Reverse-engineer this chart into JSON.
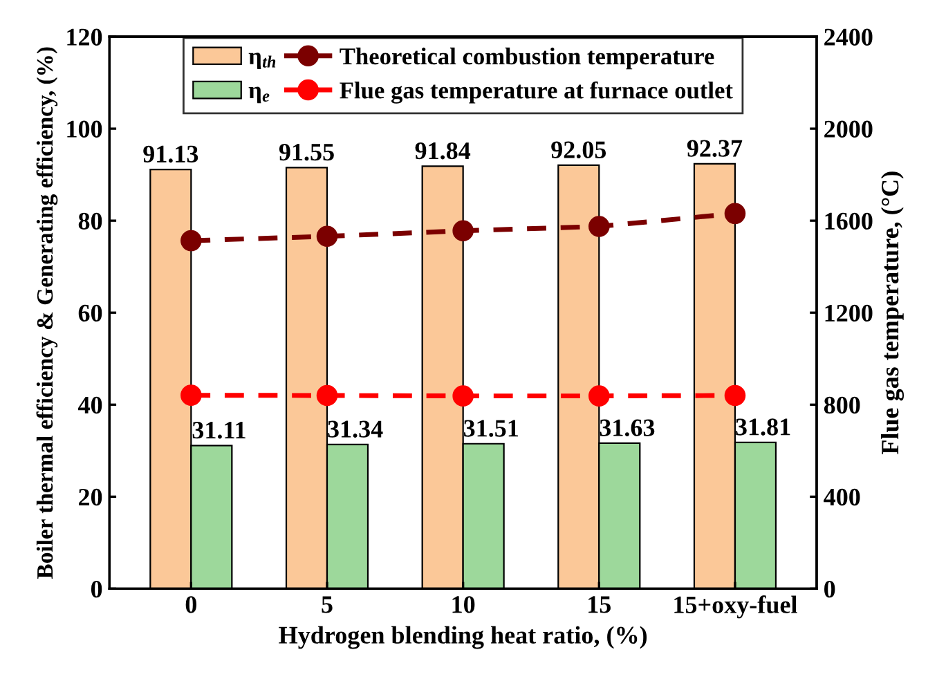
{
  "chart_data": {
    "type": "bar",
    "xlabel": "Hydrogen blending heat ratio, (%)",
    "ylabel": "Boiler thermal efficiency & Generating efficiency, (%)",
    "y2label": "Flue gas temperature, (°C)",
    "categories": [
      "0",
      "5",
      "10",
      "15",
      "15+oxy-fuel"
    ],
    "series": [
      {
        "name": "η$_{th}$",
        "color": "#fbc898",
        "values": [
          91.13,
          91.55,
          91.84,
          92.05,
          92.37
        ],
        "value_labels": [
          "91.13",
          "91.55",
          "91.84",
          "92.05",
          "92.37"
        ]
      },
      {
        "name": "η$_{e}$",
        "color": "#9dd89b",
        "values": [
          31.11,
          31.34,
          31.51,
          31.63,
          31.81
        ],
        "value_labels": [
          "31.11",
          "31.34",
          "31.51",
          "31.63",
          "31.81"
        ]
      },
      {
        "name": "Theoretical combustion temperature",
        "type": "line",
        "axis": "y2",
        "color": "#7b0000",
        "values": [
          1513,
          1532,
          1556,
          1575,
          1631
        ]
      },
      {
        "name": "Flue gas temperature at furnace outlet",
        "type": "line",
        "axis": "y2",
        "color": "#ff0000",
        "values": [
          841,
          840,
          838,
          838,
          840
        ]
      }
    ],
    "marker": "circle",
    "line_style": "dashed",
    "legend": "top",
    "grid": false,
    "ylim": [
      0,
      120
    ],
    "yticks": [
      0,
      20,
      40,
      60,
      80,
      100,
      120
    ],
    "y2lim": [
      0,
      2400
    ],
    "y2ticks": [
      0,
      400,
      800,
      1200,
      1600,
      2000,
      2400
    ]
  }
}
